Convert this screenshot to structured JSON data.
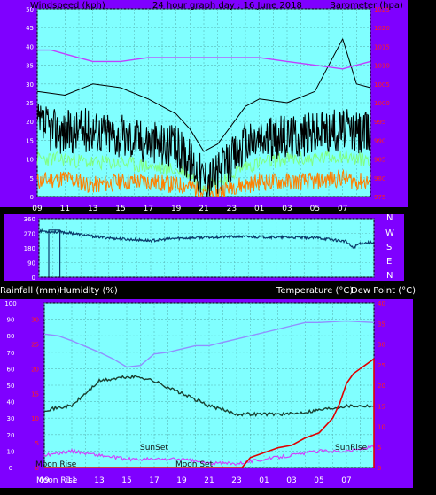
{
  "header": {
    "left_label": "Windspeed (kph)",
    "center_title": "24 hour graph day : 16 June 2018",
    "right_label": "Barometer (hpa)"
  },
  "colors": {
    "frame": "#7f00ff",
    "plot_bg": "#80ffff",
    "wind": "#000000",
    "gust_band": "#80ff80",
    "wind_dir_color": "#ff8000",
    "barometer": "#c040ff",
    "direction": "#0a3a6a",
    "humidity": "#9090ff",
    "temperature": "#1a4030",
    "dew_point": "#d040ff",
    "rainfall": "#e00000",
    "left_axis_text": "#ffffff",
    "right_axis_text": "#ff2020"
  },
  "x_hour_labels": [
    "11",
    "13",
    "15",
    "17",
    "19",
    "21",
    "23",
    "01",
    "03",
    "05",
    "07",
    "09"
  ],
  "panel_labels": {
    "compass": [
      "N",
      "W",
      "S",
      "E",
      "N"
    ],
    "rain_left": "Rainfall (mm)",
    "humidity": "Humidity (%)",
    "temp_right": "Temperature (°C)",
    "dew_right": "Dew Point (°C)"
  },
  "events": {
    "moon_rise": "Moon Rise",
    "sunset": "SunSet",
    "moon_set": "Moon Set",
    "sunrise": "SunRise",
    "moon_rise_bottom": "Moon Rise"
  },
  "chart_data": [
    {
      "type": "line",
      "name": "wind_barometer",
      "title": "24 hour graph day : 16 June 2018",
      "ylabel": "Windspeed (kph)",
      "y2label": "Barometer (hpa)",
      "x_range_hours": [
        9,
        33
      ],
      "ylim": [
        0,
        50
      ],
      "y_ticks": [
        0,
        5,
        10,
        15,
        20,
        25,
        30,
        35,
        40,
        45,
        50
      ],
      "y2lim": [
        975,
        1025
      ],
      "y2_ticks": [
        975,
        980,
        985,
        990,
        995,
        1000,
        1005,
        1010,
        1015,
        1020,
        1025
      ],
      "series": [
        {
          "name": "Windspeed",
          "axis": "left",
          "x": [
            9,
            11,
            13,
            15,
            17,
            19,
            20,
            21,
            22,
            23,
            24,
            25,
            27,
            29,
            31,
            32,
            33
          ],
          "values": [
            19,
            17,
            18,
            16,
            15,
            13,
            10,
            5,
            6,
            10,
            14,
            15,
            16,
            17,
            18,
            17,
            17
          ]
        },
        {
          "name": "Windspeed gust envelope",
          "axis": "left",
          "x": [
            9,
            11,
            13,
            15,
            17,
            19,
            20,
            21,
            22,
            23,
            24,
            25,
            27,
            29,
            31,
            32,
            33
          ],
          "values": [
            28,
            27,
            30,
            29,
            26,
            22,
            18,
            12,
            14,
            19,
            24,
            26,
            25,
            28,
            42,
            30,
            29
          ]
        },
        {
          "name": "Wind average",
          "axis": "left",
          "x": [
            9,
            11,
            13,
            15,
            17,
            19,
            20,
            21,
            22,
            23,
            24,
            25,
            27,
            29,
            31,
            32,
            33
          ],
          "values": [
            10,
            10,
            9,
            9,
            8,
            7,
            6,
            3,
            4,
            6,
            8,
            9,
            10,
            10,
            11,
            10,
            10
          ]
        },
        {
          "name": "Wind secondary",
          "axis": "left",
          "x": [
            9,
            11,
            13,
            15,
            17,
            19,
            20,
            21,
            22,
            23,
            24,
            25,
            27,
            29,
            31,
            32,
            33
          ],
          "values": [
            4,
            5,
            3,
            4,
            4,
            3,
            3,
            1,
            1,
            3,
            3,
            4,
            4,
            4,
            5,
            4,
            4
          ]
        },
        {
          "name": "Barometer",
          "axis": "right",
          "x": [
            9,
            10,
            11,
            13,
            15,
            17,
            19,
            21,
            23,
            25,
            27,
            29,
            31,
            32,
            33
          ],
          "values": [
            1014,
            1014,
            1013,
            1011,
            1011,
            1012,
            1012,
            1012,
            1012,
            1012,
            1011,
            1010,
            1009,
            1010,
            1011
          ]
        }
      ]
    },
    {
      "type": "line",
      "name": "wind_direction",
      "x_range_hours": [
        9,
        33
      ],
      "ylim": [
        0,
        360
      ],
      "y_ticks": [
        0,
        90,
        180,
        270,
        360
      ],
      "series": [
        {
          "name": "Direction",
          "axis": "left",
          "x": [
            9,
            10,
            11,
            13,
            15,
            17,
            19,
            21,
            23,
            25,
            27,
            29,
            30,
            31,
            31.5,
            32,
            33
          ],
          "values": [
            285,
            280,
            275,
            250,
            235,
            225,
            240,
            245,
            250,
            248,
            245,
            242,
            232,
            220,
            180,
            210,
            215
          ]
        },
        {
          "name": "Direction drop",
          "axis": "left",
          "x": [
            9.7,
            9.7,
            9.7,
            10.5,
            10.5,
            10.5
          ],
          "values": [
            290,
            5,
            290,
            290,
            5,
            290
          ]
        }
      ]
    },
    {
      "type": "line",
      "name": "rain_humidity_temperature",
      "ylabel": "Rainfall (mm) / Humidity (%)",
      "y2label": "Temperature (°C) / Dew Point (°C)",
      "x_range_hours": [
        9,
        33
      ],
      "ylim": [
        0,
        100
      ],
      "y_ticks": [
        0,
        10,
        20,
        30,
        40,
        50,
        60,
        70,
        80,
        90,
        100
      ],
      "rain_ticks": [
        0,
        5,
        10,
        15,
        20,
        25,
        30
      ],
      "y2lim": [
        0,
        40
      ],
      "y2_ticks": [
        0,
        5,
        10,
        15,
        20,
        25,
        30,
        35,
        40
      ],
      "series": [
        {
          "name": "Humidity",
          "axis": "left",
          "x": [
            9,
            10,
            11,
            13,
            14,
            15,
            16,
            17,
            18,
            19,
            20,
            21,
            22,
            23,
            24,
            25,
            26,
            27,
            28,
            29,
            31,
            33
          ],
          "values": [
            81,
            80,
            77,
            70,
            66,
            61,
            62,
            69,
            70,
            72,
            74,
            74,
            76,
            78,
            80,
            82,
            84,
            86,
            88,
            88,
            89,
            88
          ]
        },
        {
          "name": "Temperature",
          "axis": "right",
          "x": [
            9,
            11,
            13,
            15,
            16,
            17,
            19,
            21,
            23,
            25,
            27,
            29,
            31,
            33
          ],
          "values": [
            14,
            15,
            21,
            22,
            22,
            21,
            18,
            15,
            13,
            13,
            13,
            14,
            15,
            15
          ]
        },
        {
          "name": "Dew Point",
          "axis": "right",
          "x": [
            9,
            11,
            13,
            15,
            17,
            19,
            21,
            23,
            25,
            27,
            29,
            31,
            33
          ],
          "values": [
            3,
            4,
            3,
            2,
            2,
            2,
            1,
            1,
            2,
            3,
            4,
            4,
            5
          ]
        },
        {
          "name": "Rainfall",
          "axis": "rain",
          "x": [
            9,
            23.4,
            24,
            25,
            26,
            27,
            28,
            29,
            30,
            30.5,
            31,
            31.5,
            32,
            32.5,
            33,
            33,
            33.05
          ],
          "values": [
            0,
            0,
            2,
            3,
            4,
            4.5,
            6,
            7,
            10,
            13,
            17,
            19,
            20,
            21,
            22,
            0,
            0
          ]
        }
      ]
    }
  ]
}
